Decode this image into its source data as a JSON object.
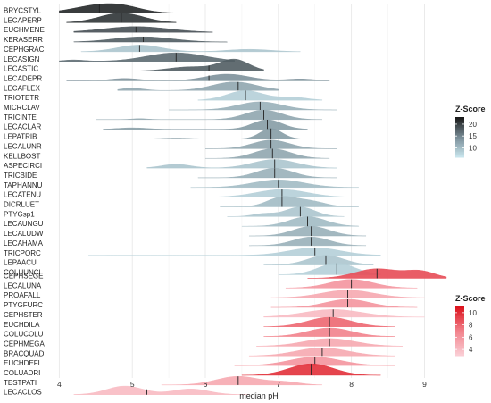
{
  "chart_data": {
    "type": "ridgeline",
    "xlabel": "median pH",
    "xlim": [
      3.8,
      9.3
    ],
    "xticks": [
      4,
      5,
      6,
      7,
      8,
      9
    ],
    "groups": [
      {
        "legend_title": "Z-Score",
        "legend_ticks": [
          20,
          15,
          10
        ],
        "zlim": [
          6,
          23
        ],
        "scale": "grey-blue",
        "series": [
          {
            "name": "BRYCSTYL",
            "median": 4.55,
            "z": 22,
            "peaks": [
              [
                4.55,
                0.35,
                0.8
              ],
              [
                4.9,
                0.25,
                0.35
              ]
            ],
            "range": [
              4.0,
              5.8
            ]
          },
          {
            "name": "LECAPERP",
            "median": 4.85,
            "z": 21,
            "peaks": [
              [
                4.85,
                0.3,
                1.0
              ]
            ],
            "range": [
              4.1,
              5.6
            ]
          },
          {
            "name": "EUCHMENE",
            "median": 5.05,
            "z": 19,
            "peaks": [
              [
                5.05,
                0.45,
                0.6
              ]
            ],
            "range": [
              4.2,
              6.1
            ]
          },
          {
            "name": "KERASERR",
            "median": 5.15,
            "z": 18,
            "peaks": [
              [
                5.15,
                0.4,
                0.55
              ]
            ],
            "range": [
              4.2,
              6.3
            ]
          },
          {
            "name": "CEPHGRAC",
            "median": 5.1,
            "z": 9,
            "peaks": [
              [
                5.1,
                0.3,
                0.7
              ],
              [
                6.6,
                0.3,
                0.25
              ]
            ],
            "range": [
              4.3,
              7.3
            ]
          },
          {
            "name": "LECASIGN",
            "median": 5.6,
            "z": 17,
            "peaks": [
              [
                5.6,
                0.4,
                0.9
              ],
              [
                4.2,
                0.15,
                0.15
              ]
            ],
            "range": [
              4.0,
              6.4
            ]
          },
          {
            "name": "LECASTIC",
            "median": 6.05,
            "z": 18,
            "peaks": [
              [
                6.4,
                0.2,
                1.2
              ],
              [
                5.8,
                0.3,
                0.45
              ]
            ],
            "range": [
              4.6,
              6.8
            ]
          },
          {
            "name": "LECADEPR",
            "median": 6.05,
            "z": 14,
            "peaks": [
              [
                6.3,
                0.3,
                0.7
              ],
              [
                4.9,
                0.2,
                0.25
              ],
              [
                7.3,
                0.2,
                0.2
              ]
            ],
            "range": [
              4.1,
              7.7
            ]
          },
          {
            "name": "LECAFLEX",
            "median": 6.45,
            "z": 12,
            "peaks": [
              [
                6.4,
                0.3,
                0.9
              ],
              [
                5.0,
                0.15,
                0.25
              ]
            ],
            "range": [
              4.8,
              7.0
            ]
          },
          {
            "name": "TRIOTETR",
            "median": 6.55,
            "z": 8,
            "peaks": [
              [
                6.55,
                0.25,
                1.0
              ],
              [
                7.2,
                0.2,
                0.3
              ]
            ],
            "range": [
              5.9,
              7.6
            ]
          },
          {
            "name": "MICRCLAV",
            "median": 6.75,
            "z": 11,
            "peaks": [
              [
                6.75,
                0.3,
                0.85
              ]
            ],
            "range": [
              5.5,
              7.8
            ]
          },
          {
            "name": "TRICINTE",
            "median": 6.8,
            "z": 12,
            "peaks": [
              [
                6.8,
                0.25,
                1.0
              ],
              [
                5.1,
                0.12,
                0.1
              ]
            ],
            "range": [
              4.5,
              7.6
            ]
          },
          {
            "name": "LECACLAR",
            "median": 6.85,
            "z": 13,
            "peaks": [
              [
                6.85,
                0.2,
                1.0
              ],
              [
                5.0,
                0.2,
                0.15
              ]
            ],
            "range": [
              4.6,
              7.4
            ]
          },
          {
            "name": "LEPATRIB",
            "median": 6.9,
            "z": 13,
            "peaks": [
              [
                6.9,
                0.15,
                1.1
              ],
              [
                5.6,
                0.2,
                0.1
              ]
            ],
            "range": [
              5.3,
              7.5
            ]
          },
          {
            "name": "LECALUNR",
            "median": 6.9,
            "z": 12,
            "peaks": [
              [
                6.9,
                0.25,
                0.9
              ]
            ],
            "range": [
              6.0,
              7.8
            ]
          },
          {
            "name": "KELLBOST",
            "median": 6.92,
            "z": 12,
            "peaks": [
              [
                6.92,
                0.25,
                1.0
              ]
            ],
            "range": [
              6.0,
              7.7
            ]
          },
          {
            "name": "ASPECIRCI",
            "median": 6.95,
            "z": 9,
            "peaks": [
              [
                6.95,
                0.3,
                0.9
              ],
              [
                5.6,
                0.2,
                0.4
              ]
            ],
            "range": [
              5.2,
              7.8
            ]
          },
          {
            "name": "TRICBIDE",
            "median": 6.95,
            "z": 11,
            "peaks": [
              [
                6.95,
                0.25,
                1.0
              ]
            ],
            "range": [
              5.9,
              7.8
            ]
          },
          {
            "name": "TAPHANNU",
            "median": 7.0,
            "z": 10,
            "peaks": [
              [
                7.0,
                0.35,
                0.8
              ]
            ],
            "range": [
              5.8,
              8.1
            ]
          },
          {
            "name": "LECATENU",
            "median": 7.05,
            "z": 8,
            "peaks": [
              [
                7.05,
                0.35,
                0.8
              ]
            ],
            "range": [
              6.0,
              8.2
            ]
          },
          {
            "name": "DICRLUET",
            "median": 7.05,
            "z": 10,
            "peaks": [
              [
                7.05,
                0.2,
                1.0
              ],
              [
                7.45,
                0.2,
                0.55
              ]
            ],
            "range": [
              6.2,
              8.1
            ]
          },
          {
            "name": "PTYGsp1",
            "median": 7.3,
            "z": 9,
            "peaks": [
              [
                7.3,
                0.2,
                1.0
              ],
              [
                6.8,
                0.15,
                0.3
              ]
            ],
            "range": [
              6.3,
              7.9
            ]
          },
          {
            "name": "LECAUNGU",
            "median": 7.4,
            "z": 10,
            "peaks": [
              [
                7.4,
                0.25,
                1.0
              ]
            ],
            "range": [
              6.5,
              8.1
            ]
          },
          {
            "name": "LECALUDW",
            "median": 7.45,
            "z": 11,
            "peaks": [
              [
                7.45,
                0.25,
                1.0
              ]
            ],
            "range": [
              6.6,
              8.2
            ]
          },
          {
            "name": "LECAHAMA",
            "median": 7.45,
            "z": 11,
            "peaks": [
              [
                7.45,
                0.25,
                0.9
              ]
            ],
            "range": [
              6.6,
              8.2
            ]
          },
          {
            "name": "TRICPORC",
            "median": 7.5,
            "z": 8,
            "peaks": [
              [
                7.5,
                0.35,
                0.8
              ]
            ],
            "range": [
              4.4,
              8.4
            ]
          },
          {
            "name": "LEPAACU",
            "median": 7.65,
            "z": 9,
            "peaks": [
              [
                7.65,
                0.25,
                1.0
              ]
            ],
            "range": [
              6.8,
              8.3
            ]
          },
          {
            "name": "COLUUNCI",
            "median": 7.8,
            "z": 8,
            "peaks": [
              [
                7.8,
                0.25,
                1.2
              ]
            ],
            "range": [
              7.0,
              8.4
            ]
          }
        ]
      },
      {
        "legend_title": "Z-Score",
        "legend_ticks": [
          10,
          8,
          6,
          4
        ],
        "zlim": [
          3,
          11
        ],
        "scale": "pink-red",
        "series": [
          {
            "name": "CEPHSEGE",
            "median": 8.35,
            "z": 9,
            "peaks": [
              [
                8.35,
                0.3,
                1.0
              ],
              [
                8.95,
                0.2,
                0.7
              ]
            ],
            "range": [
              7.4,
              9.3
            ]
          },
          {
            "name": "LECALUNA",
            "median": 8.0,
            "z": 6,
            "peaks": [
              [
                8.0,
                0.3,
                0.9
              ]
            ],
            "range": [
              7.1,
              8.9
            ]
          },
          {
            "name": "PROAFALL",
            "median": 7.95,
            "z": 5,
            "peaks": [
              [
                7.95,
                0.35,
                0.8
              ]
            ],
            "range": [
              6.9,
              9.0
            ]
          },
          {
            "name": "PTYGFURC",
            "median": 7.95,
            "z": 6,
            "peaks": [
              [
                7.95,
                0.3,
                0.85
              ]
            ],
            "range": [
              6.9,
              8.9
            ]
          },
          {
            "name": "CEPHSTER",
            "median": 7.75,
            "z": 4,
            "peaks": [
              [
                7.75,
                0.4,
                0.8
              ]
            ],
            "range": [
              6.8,
              9.0
            ]
          },
          {
            "name": "EUCHDILA",
            "median": 7.7,
            "z": 8,
            "peaks": [
              [
                7.7,
                0.3,
                1.0
              ]
            ],
            "range": [
              6.8,
              8.6
            ]
          },
          {
            "name": "COLUCOLU",
            "median": 7.7,
            "z": 7,
            "peaks": [
              [
                7.7,
                0.3,
                0.9
              ]
            ],
            "range": [
              6.8,
              8.6
            ]
          },
          {
            "name": "CEPHMEGA",
            "median": 7.7,
            "z": 5,
            "peaks": [
              [
                7.7,
                0.35,
                0.8
              ]
            ],
            "range": [
              6.7,
              8.7
            ]
          },
          {
            "name": "BRACQUAD",
            "median": 7.6,
            "z": 5,
            "peaks": [
              [
                7.6,
                0.35,
                0.85
              ]
            ],
            "range": [
              6.6,
              8.6
            ]
          },
          {
            "name": "EUCHDEFL",
            "median": 7.5,
            "z": 6,
            "peaks": [
              [
                7.5,
                0.35,
                0.9
              ]
            ],
            "range": [
              6.4,
              8.6
            ]
          },
          {
            "name": "COLUADRI",
            "median": 7.45,
            "z": 10,
            "peaks": [
              [
                7.45,
                0.3,
                1.2
              ]
            ],
            "range": [
              6.5,
              8.4
            ]
          },
          {
            "name": "TESTPATI",
            "median": 6.45,
            "z": 5,
            "peaks": [
              [
                6.45,
                0.3,
                0.9
              ],
              [
                7.1,
                0.2,
                0.3
              ]
            ],
            "range": [
              5.4,
              7.6
            ]
          },
          {
            "name": "LECACLOS",
            "median": 5.2,
            "z": 4,
            "peaks": [
              [
                4.9,
                0.25,
                0.9
              ],
              [
                5.8,
                0.25,
                0.6
              ]
            ],
            "range": [
              4.2,
              6.6
            ]
          }
        ]
      }
    ]
  }
}
